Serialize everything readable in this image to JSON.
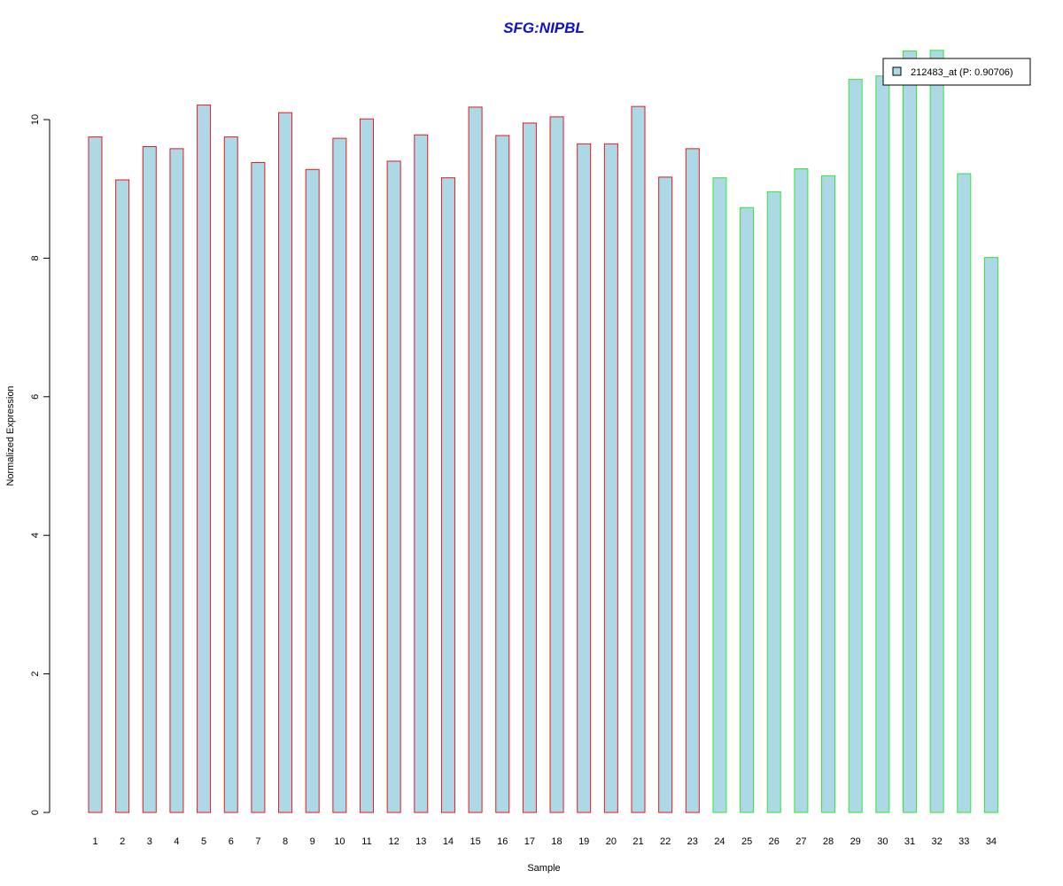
{
  "chart_data": {
    "type": "bar",
    "title": "SFG:NIPBL",
    "xlabel": "Sample",
    "ylabel": "Normalized Expression",
    "ylim": [
      0,
      11
    ],
    "yticks": [
      "0",
      "2",
      "4",
      "6",
      "8",
      "10"
    ],
    "categories": [
      "1",
      "2",
      "3",
      "4",
      "5",
      "6",
      "7",
      "8",
      "9",
      "10",
      "11",
      "12",
      "13",
      "14",
      "15",
      "16",
      "17",
      "18",
      "19",
      "20",
      "21",
      "22",
      "23",
      "24",
      "25",
      "26",
      "27",
      "28",
      "29",
      "30",
      "31",
      "32",
      "33",
      "34"
    ],
    "series": [
      {
        "name": "212483_at (P: 0.90706)",
        "values": [
          9.75,
          9.13,
          9.61,
          9.58,
          10.21,
          9.75,
          9.38,
          10.1,
          9.28,
          9.73,
          10.01,
          9.4,
          9.78,
          9.16,
          10.18,
          9.77,
          9.95,
          10.04,
          9.65,
          9.65,
          10.19,
          9.17,
          9.58,
          9.16,
          8.73,
          8.96,
          9.29,
          9.19,
          10.58,
          10.63,
          10.99,
          11.0,
          9.22,
          8.01
        ]
      }
    ],
    "groups": [
      {
        "samples": "1-23",
        "border_color": "#e31a1c"
      },
      {
        "samples": "24-34",
        "border_color": "#33e633"
      }
    ],
    "bar_fill": "#add8e6",
    "title_color": "#1010cc",
    "grid": false,
    "legend": {
      "placement": "top-right",
      "label": "212483_at (P: 0.90706)"
    }
  }
}
